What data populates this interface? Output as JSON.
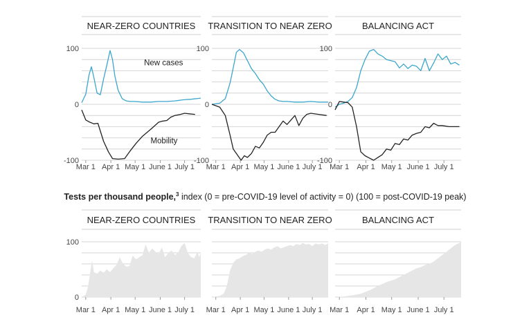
{
  "colors": {
    "new_cases": "#3aa6cc",
    "mobility": "#222222",
    "tests_fill": "#e6e6e6",
    "grid": "#d4d4d4",
    "text": "#222222",
    "tick_text": "#444444"
  },
  "section_title": {
    "bold": "Tests per thousand people,",
    "sup": "3",
    "rest": " index (0 = pre-COVID-19 level of activity = 0) (100 = post-COVID-19 peak)"
  },
  "chart_data": [
    {
      "type": "line",
      "title": "NEAR-ZERO COUNTRIES",
      "xlabel": "",
      "ylabel": "",
      "ylim": [
        -100,
        100
      ],
      "yticks": [
        100,
        0,
        -100
      ],
      "xticks": [
        {
          "x": 0,
          "label": "Mar 1"
        },
        {
          "x": 31,
          "label": "Apr 1"
        },
        {
          "x": 61,
          "label": "May 1"
        },
        {
          "x": 92,
          "label": "June 1"
        },
        {
          "x": 122,
          "label": "July 1"
        }
      ],
      "xlim": [
        -5,
        142
      ],
      "series": [
        {
          "name": "New cases",
          "role": "new_cases",
          "x": [
            -5,
            0,
            4,
            7,
            10,
            14,
            18,
            22,
            26,
            30,
            33,
            36,
            40,
            45,
            50,
            55,
            60,
            70,
            80,
            90,
            100,
            110,
            120,
            130,
            142
          ],
          "y": [
            3,
            18,
            52,
            67,
            48,
            20,
            17,
            45,
            70,
            96,
            80,
            50,
            25,
            10,
            6,
            5,
            5,
            4,
            4,
            5,
            5,
            6,
            8,
            9,
            11
          ]
        },
        {
          "name": "Mobility",
          "role": "mobility",
          "x": [
            -5,
            0,
            5,
            10,
            15,
            22,
            28,
            33,
            40,
            48,
            55,
            62,
            70,
            80,
            90,
            95,
            100,
            105,
            110,
            117,
            122,
            128,
            135
          ],
          "y": [
            -10,
            -28,
            -32,
            -35,
            -34,
            -66,
            -85,
            -97,
            -98,
            -97,
            -83,
            -70,
            -57,
            -45,
            -32,
            -30,
            -29,
            -23,
            -20,
            -18,
            -16,
            -17,
            -18
          ]
        }
      ]
    },
    {
      "type": "line",
      "title": "TRANSITION TO NEAR ZERO",
      "xlabel": "",
      "ylabel": "",
      "ylim": [
        -100,
        100
      ],
      "yticks": [
        100,
        0,
        -100
      ],
      "xticks": [
        {
          "x": 0,
          "label": "Mar 1"
        },
        {
          "x": 31,
          "label": "Apr 1"
        },
        {
          "x": 61,
          "label": "May 1"
        },
        {
          "x": 92,
          "label": "June 1"
        },
        {
          "x": 122,
          "label": "July 1"
        }
      ],
      "xlim": [
        -5,
        142
      ],
      "series": [
        {
          "name": "",
          "role": "new_cases",
          "x": [
            -5,
            5,
            12,
            18,
            22,
            26,
            30,
            35,
            40,
            45,
            50,
            55,
            60,
            65,
            70,
            75,
            80,
            85,
            90,
            100,
            110,
            120,
            130,
            142
          ],
          "y": [
            0,
            2,
            10,
            38,
            65,
            93,
            98,
            92,
            78,
            64,
            55,
            44,
            36,
            24,
            15,
            9,
            6,
            5,
            5,
            4,
            4,
            5,
            4,
            4
          ]
        },
        {
          "name": "",
          "role": "mobility",
          "x": [
            -5,
            5,
            12,
            18,
            22,
            27,
            32,
            36,
            40,
            45,
            50,
            55,
            60,
            65,
            70,
            75,
            80,
            85,
            90,
            95,
            100,
            105,
            110,
            115,
            120,
            130,
            140
          ],
          "y": [
            0,
            -5,
            -20,
            -55,
            -80,
            -90,
            -100,
            -92,
            -95,
            -88,
            -75,
            -78,
            -68,
            -55,
            -50,
            -50,
            -40,
            -30,
            -36,
            -28,
            -20,
            -38,
            -25,
            -18,
            -16,
            -18,
            -20
          ]
        }
      ]
    },
    {
      "type": "line",
      "title": "BALANCING ACT",
      "xlabel": "",
      "ylabel": "",
      "ylim": [
        -100,
        100
      ],
      "yticks": [
        100,
        0,
        -100
      ],
      "xticks": [
        {
          "x": 0,
          "label": "Mar 1"
        },
        {
          "x": 31,
          "label": "Apr 1"
        },
        {
          "x": 61,
          "label": "May 1"
        },
        {
          "x": 92,
          "label": "June 1"
        },
        {
          "x": 122,
          "label": "July 1"
        }
      ],
      "xlim": [
        -5,
        142
      ],
      "series": [
        {
          "name": "",
          "role": "new_cases",
          "x": [
            -5,
            0,
            5,
            10,
            15,
            20,
            25,
            30,
            35,
            40,
            45,
            50,
            55,
            60,
            65,
            70,
            75,
            80,
            85,
            90,
            95,
            100,
            105,
            110,
            115,
            120,
            125,
            130,
            135,
            140
          ],
          "y": [
            -5,
            0,
            2,
            5,
            12,
            30,
            60,
            80,
            95,
            98,
            90,
            86,
            80,
            78,
            76,
            65,
            72,
            64,
            70,
            68,
            60,
            82,
            60,
            74,
            90,
            80,
            86,
            72,
            75,
            70
          ]
        },
        {
          "name": "",
          "role": "mobility",
          "x": [
            -5,
            0,
            5,
            10,
            15,
            20,
            25,
            30,
            35,
            40,
            45,
            50,
            55,
            60,
            65,
            70,
            75,
            80,
            85,
            90,
            95,
            100,
            105,
            110,
            115,
            120,
            128,
            140
          ],
          "y": [
            -10,
            5,
            4,
            3,
            -5,
            -40,
            -85,
            -92,
            -96,
            -100,
            -95,
            -90,
            -80,
            -82,
            -70,
            -72,
            -62,
            -64,
            -55,
            -52,
            -50,
            -40,
            -42,
            -34,
            -38,
            -38,
            -40,
            -40
          ]
        }
      ]
    },
    {
      "type": "area",
      "title": "NEAR-ZERO COUNTRIES",
      "xlabel": "",
      "ylabel": "",
      "ylim": [
        0,
        100
      ],
      "yticks": [
        100,
        0
      ],
      "xticks": [
        {
          "x": 0,
          "label": "Mar 1"
        },
        {
          "x": 31,
          "label": "Apr 1"
        },
        {
          "x": 61,
          "label": "May 1"
        },
        {
          "x": 92,
          "label": "June 1"
        },
        {
          "x": 122,
          "label": "July 1"
        }
      ],
      "xlim": [
        -5,
        142
      ],
      "series": [
        {
          "name": "",
          "role": "tests",
          "x": [
            -5,
            0,
            3,
            6,
            8,
            10,
            14,
            18,
            22,
            26,
            30,
            34,
            38,
            42,
            46,
            50,
            54,
            58,
            62,
            66,
            70,
            74,
            78,
            82,
            86,
            90,
            94,
            98,
            102,
            106,
            110,
            114,
            118,
            122,
            126,
            130,
            134,
            138,
            140,
            142
          ],
          "y": [
            0,
            4,
            20,
            50,
            66,
            45,
            42,
            48,
            44,
            50,
            45,
            52,
            58,
            72,
            60,
            55,
            56,
            75,
            68,
            72,
            76,
            95,
            80,
            88,
            82,
            78,
            90,
            72,
            80,
            84,
            76,
            80,
            92,
            98,
            80,
            72,
            70,
            82,
            72,
            80
          ]
        }
      ]
    },
    {
      "type": "area",
      "title": "TRANSITION TO NEAR ZERO",
      "xlabel": "",
      "ylabel": "",
      "ylim": [
        0,
        100
      ],
      "yticks": [],
      "xticks": [
        {
          "x": 0,
          "label": "Mar 1"
        },
        {
          "x": 31,
          "label": "Apr 1"
        },
        {
          "x": 61,
          "label": "May 1"
        },
        {
          "x": 92,
          "label": "June 1"
        },
        {
          "x": 122,
          "label": "July 1"
        }
      ],
      "xlim": [
        -5,
        142
      ],
      "series": [
        {
          "name": "",
          "role": "tests",
          "x": [
            -5,
            5,
            10,
            14,
            18,
            22,
            26,
            30,
            34,
            38,
            42,
            46,
            50,
            54,
            58,
            62,
            66,
            70,
            74,
            78,
            82,
            86,
            90,
            94,
            98,
            102,
            106,
            110,
            114,
            118,
            122,
            126,
            130,
            134,
            138,
            142
          ],
          "y": [
            0,
            2,
            6,
            20,
            48,
            62,
            68,
            70,
            74,
            76,
            80,
            78,
            82,
            84,
            82,
            86,
            88,
            86,
            90,
            92,
            88,
            90,
            92,
            94,
            92,
            96,
            94,
            98,
            95,
            96,
            92,
            97,
            95,
            97,
            94,
            97
          ]
        }
      ]
    },
    {
      "type": "area",
      "title": "BALANCING ACT",
      "xlabel": "",
      "ylabel": "",
      "ylim": [
        0,
        100
      ],
      "yticks": [],
      "xticks": [
        {
          "x": 0,
          "label": "Mar 1"
        },
        {
          "x": 31,
          "label": "Apr 1"
        },
        {
          "x": 61,
          "label": "May 1"
        },
        {
          "x": 92,
          "label": "June 1"
        },
        {
          "x": 122,
          "label": "July 1"
        }
      ],
      "xlim": [
        -5,
        142
      ],
      "series": [
        {
          "name": "",
          "role": "tests",
          "x": [
            -5,
            5,
            15,
            25,
            35,
            45,
            55,
            65,
            75,
            85,
            90,
            95,
            100,
            105,
            110,
            115,
            120,
            125,
            130,
            135,
            140,
            142
          ],
          "y": [
            0,
            1,
            3,
            6,
            12,
            20,
            27,
            32,
            40,
            48,
            52,
            54,
            58,
            60,
            64,
            70,
            76,
            82,
            88,
            94,
            98,
            100
          ]
        }
      ]
    }
  ],
  "annotations": [
    {
      "chart": 0,
      "text": "New cases",
      "at_x": 72,
      "at_y": 70
    },
    {
      "chart": 0,
      "text": "Mobility",
      "at_x": 80,
      "at_y": -70
    }
  ]
}
